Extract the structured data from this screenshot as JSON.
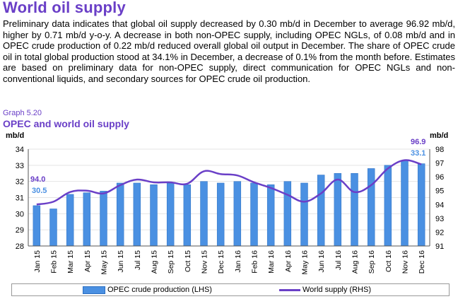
{
  "page": {
    "heading": "World oil supply",
    "paragraph": "Preliminary data indicates that global oil supply decreased by 0.30 mb/d in December to average 96.92 mb/d, higher by 0.71 mb/d y-o-y. A decrease in both non-OPEC supply, including OPEC NGLs, of 0.08 mb/d and in OPEC crude production of 0.22 mb/d reduced overall global oil output in December. The share of OPEC crude oil in total global production stood at 34.1% in December, a decrease of 0.1% from the month before. Estimates are based on preliminary data for non-OPEC supply, direct communication for OPEC NGLs and non-conventional liquids, and secondary sources for OPEC crude oil production.",
    "graph_number": "Graph 5.20",
    "graph_title": "OPEC and world oil supply"
  },
  "chart_data": {
    "type": "bar",
    "categories": [
      "Jan 15",
      "Feb 15",
      "Mar 15",
      "Apr 15",
      "May 15",
      "Jun 15",
      "Jul 15",
      "Aug 15",
      "Sep 15",
      "Oct 15",
      "Nov 15",
      "Dec 15",
      "Jan 16",
      "Feb 16",
      "Mar 16",
      "Apr 16",
      "May 16",
      "Jun 16",
      "Jul 16",
      "Aug 16",
      "Sep 16",
      "Oct 16",
      "Nov 16",
      "Dec 16"
    ],
    "series": [
      {
        "name": "OPEC crude production (LHS)",
        "type": "bar",
        "axis": "left",
        "color": "#4a90e2",
        "values": [
          30.5,
          30.3,
          31.2,
          31.3,
          31.4,
          31.9,
          31.9,
          31.8,
          31.9,
          31.8,
          32.0,
          31.9,
          32.0,
          31.9,
          31.8,
          32.0,
          31.9,
          32.4,
          32.5,
          32.5,
          32.8,
          33.0,
          33.3,
          33.1
        ]
      },
      {
        "name": "World supply (RHS)",
        "type": "line",
        "axis": "right",
        "color": "#6a3fc7",
        "values": [
          94.0,
          94.2,
          94.9,
          95.0,
          94.8,
          95.4,
          95.8,
          95.6,
          95.6,
          95.5,
          96.4,
          96.2,
          96.1,
          95.6,
          95.2,
          94.7,
          94.2,
          94.8,
          95.8,
          94.9,
          95.4,
          96.6,
          97.2,
          96.9
        ]
      }
    ],
    "left_axis": {
      "label": "mb/d",
      "min": 28,
      "max": 34,
      "ticks": [
        "28",
        "29",
        "30",
        "31",
        "32",
        "33",
        "34"
      ]
    },
    "right_axis": {
      "label": "mb/d",
      "min": 91,
      "max": 98,
      "ticks": [
        "91",
        "92",
        "93",
        "94",
        "95",
        "96",
        "97",
        "98"
      ]
    },
    "annotations": {
      "start_world": "94.0",
      "start_opec": "30.5",
      "end_world": "96.9",
      "end_opec": "33.1"
    },
    "legend_position": "bottom"
  }
}
